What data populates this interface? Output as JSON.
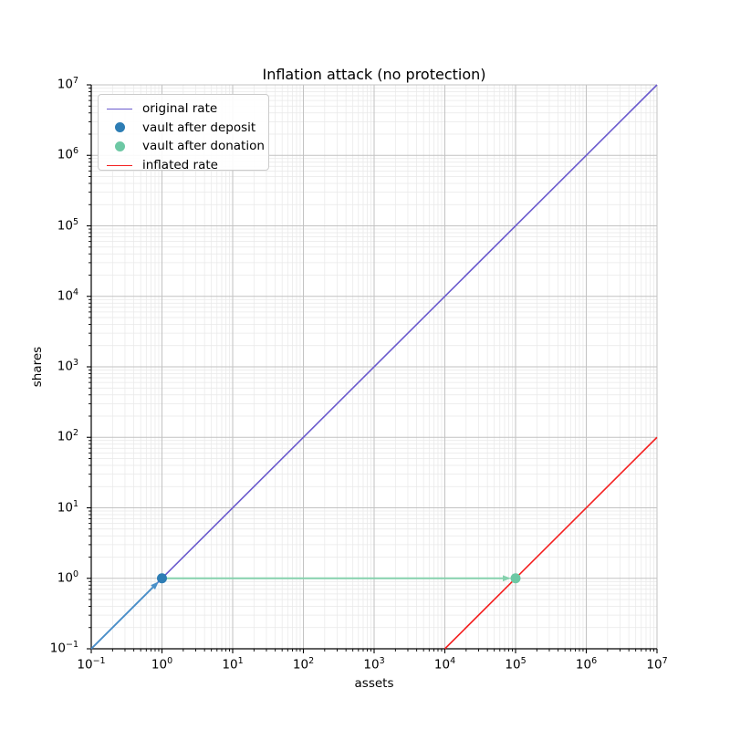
{
  "figure": {
    "title": "Inflation attack (no protection)",
    "xlabel": "assets",
    "ylabel": "shares"
  },
  "chart_data": {
    "type": "line",
    "title": "Inflation attack (no protection)",
    "xlabel": "assets",
    "ylabel": "shares",
    "xscale": "log",
    "yscale": "log",
    "xlim": [
      0.1,
      10000000
    ],
    "ylim": [
      0.1,
      10000000
    ],
    "x_tick_exponents": [
      -1,
      0,
      1,
      2,
      3,
      4,
      5,
      6,
      7
    ],
    "y_tick_exponents": [
      -1,
      0,
      1,
      2,
      3,
      4,
      5,
      6,
      7
    ],
    "grid": "both",
    "grid_major_color": "#c2c2c2",
    "grid_minor_color": "#e8e8e8",
    "legend_position": "upper left",
    "series": [
      {
        "name": "original rate",
        "color": "#6a5acd",
        "width": 1.6,
        "points": [
          [
            0.1,
            0.1
          ],
          [
            10000000,
            10000000
          ]
        ]
      },
      {
        "name": "inflated rate",
        "color": "#f42020",
        "width": 1.6,
        "points": [
          [
            10000,
            0.1
          ],
          [
            10000000,
            100
          ]
        ]
      }
    ],
    "markers": [
      {
        "name": "vault after deposit",
        "color": "#2d7db4",
        "x": 1,
        "y": 1,
        "radius": 5.5
      },
      {
        "name": "vault after donation",
        "color": "#6dc8a4",
        "x": 100000,
        "y": 1,
        "radius": 5.5
      }
    ],
    "arrows": [
      {
        "name": "deposit-arrow",
        "color": "#4a90c8",
        "from": [
          0.1,
          0.1
        ],
        "to": [
          1,
          1
        ]
      },
      {
        "name": "donation-arrow",
        "color": "#85d1ad",
        "from": [
          1,
          1
        ],
        "to": [
          100000,
          1
        ]
      }
    ],
    "legend": [
      {
        "label": "original rate",
        "marker": "line",
        "color": "#6a5acd"
      },
      {
        "label": "vault after deposit",
        "marker": "dot",
        "color": "#2d7db4"
      },
      {
        "label": "vault after donation",
        "marker": "dot",
        "color": "#6dc8a4"
      },
      {
        "label": "inflated rate",
        "marker": "line",
        "color": "#f42020"
      }
    ]
  }
}
